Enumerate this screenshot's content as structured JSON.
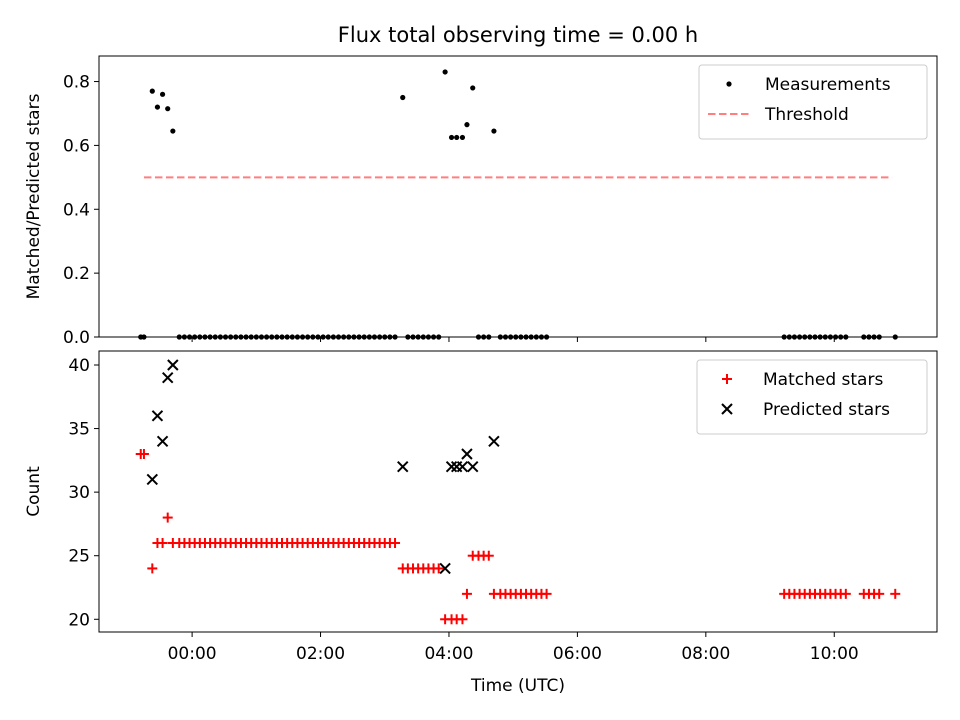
{
  "chart_data": [
    {
      "type": "scatter",
      "panel": "top",
      "title": "Flux total observing time = 0.00 h",
      "xlabel": "",
      "ylabel": "Matched/Predicted stars",
      "xlim": [
        -1.45,
        11.6
      ],
      "ylim": [
        0,
        0.88
      ],
      "yticks": [
        "0.0",
        "0.2",
        "0.4",
        "0.6",
        "0.8"
      ],
      "xticks": [
        "00:00",
        "02:00",
        "04:00",
        "06:00",
        "08:00",
        "10:00"
      ],
      "show_xtick_labels": false,
      "legend_position": "upper right",
      "grid": false,
      "series": [
        {
          "name": "Measurements",
          "kind": "scatter",
          "color": "#000000",
          "points": [
            [
              -0.8,
              0.0
            ],
            [
              -0.75,
              0.0
            ],
            [
              -0.62,
              0.77
            ],
            [
              -0.54,
              0.72
            ],
            [
              -0.46,
              0.76
            ],
            [
              -0.38,
              0.715
            ],
            [
              -0.3,
              0.645
            ],
            [
              -0.2,
              0.0
            ],
            [
              -0.12,
              0.0
            ],
            [
              -0.04,
              0.0
            ],
            [
              0.04,
              0.0
            ],
            [
              0.12,
              0.0
            ],
            [
              0.2,
              0.0
            ],
            [
              0.28,
              0.0
            ],
            [
              0.36,
              0.0
            ],
            [
              0.44,
              0.0
            ],
            [
              0.52,
              0.0
            ],
            [
              0.6,
              0.0
            ],
            [
              0.68,
              0.0
            ],
            [
              0.76,
              0.0
            ],
            [
              0.84,
              0.0
            ],
            [
              0.92,
              0.0
            ],
            [
              1.0,
              0.0
            ],
            [
              1.08,
              0.0
            ],
            [
              1.16,
              0.0
            ],
            [
              1.24,
              0.0
            ],
            [
              1.32,
              0.0
            ],
            [
              1.4,
              0.0
            ],
            [
              1.48,
              0.0
            ],
            [
              1.56,
              0.0
            ],
            [
              1.64,
              0.0
            ],
            [
              1.72,
              0.0
            ],
            [
              1.8,
              0.0
            ],
            [
              1.88,
              0.0
            ],
            [
              1.96,
              0.0
            ],
            [
              2.04,
              0.0
            ],
            [
              2.12,
              0.0
            ],
            [
              2.2,
              0.0
            ],
            [
              2.28,
              0.0
            ],
            [
              2.36,
              0.0
            ],
            [
              2.44,
              0.0
            ],
            [
              2.52,
              0.0
            ],
            [
              2.6,
              0.0
            ],
            [
              2.68,
              0.0
            ],
            [
              2.76,
              0.0
            ],
            [
              2.84,
              0.0
            ],
            [
              2.92,
              0.0
            ],
            [
              3.0,
              0.0
            ],
            [
              3.08,
              0.0
            ],
            [
              3.16,
              0.0
            ],
            [
              3.28,
              0.75
            ],
            [
              3.36,
              0.0
            ],
            [
              3.44,
              0.0
            ],
            [
              3.52,
              0.0
            ],
            [
              3.6,
              0.0
            ],
            [
              3.68,
              0.0
            ],
            [
              3.76,
              0.0
            ],
            [
              3.84,
              0.0
            ],
            [
              3.94,
              0.83
            ],
            [
              4.04,
              0.625
            ],
            [
              4.12,
              0.625
            ],
            [
              4.21,
              0.625
            ],
            [
              4.28,
              0.665
            ],
            [
              4.37,
              0.78
            ],
            [
              4.46,
              0.0
            ],
            [
              4.54,
              0.0
            ],
            [
              4.62,
              0.0
            ],
            [
              4.7,
              0.645
            ],
            [
              4.8,
              0.0
            ],
            [
              4.88,
              0.0
            ],
            [
              4.96,
              0.0
            ],
            [
              5.04,
              0.0
            ],
            [
              5.12,
              0.0
            ],
            [
              5.2,
              0.0
            ],
            [
              5.28,
              0.0
            ],
            [
              5.36,
              0.0
            ],
            [
              5.44,
              0.0
            ],
            [
              5.52,
              0.0
            ],
            [
              9.22,
              0.0
            ],
            [
              9.3,
              0.0
            ],
            [
              9.38,
              0.0
            ],
            [
              9.46,
              0.0
            ],
            [
              9.54,
              0.0
            ],
            [
              9.62,
              0.0
            ],
            [
              9.7,
              0.0
            ],
            [
              9.78,
              0.0
            ],
            [
              9.86,
              0.0
            ],
            [
              9.94,
              0.0
            ],
            [
              10.02,
              0.0
            ],
            [
              10.1,
              0.0
            ],
            [
              10.18,
              0.0
            ],
            [
              10.46,
              0.0
            ],
            [
              10.54,
              0.0
            ],
            [
              10.62,
              0.0
            ],
            [
              10.7,
              0.0
            ],
            [
              10.95,
              0.0
            ]
          ]
        },
        {
          "name": "Threshold",
          "kind": "line",
          "style": "dashed",
          "color": "#ff7f7f",
          "points": [
            [
              -0.75,
              0.5
            ],
            [
              10.9,
              0.5
            ]
          ]
        }
      ]
    },
    {
      "type": "scatter",
      "panel": "bottom",
      "title": "",
      "xlabel": "Time (UTC)",
      "ylabel": "Count",
      "xlim": [
        -1.45,
        11.6
      ],
      "ylim": [
        19,
        41.1
      ],
      "yticks": [
        "20",
        "25",
        "30",
        "35",
        "40"
      ],
      "xticks": [
        "00:00",
        "02:00",
        "04:00",
        "06:00",
        "08:00",
        "10:00"
      ],
      "show_xtick_labels": true,
      "legend_position": "upper right",
      "grid": false,
      "series": [
        {
          "name": "Matched stars",
          "marker": "plus",
          "color": "#ff0000",
          "points": [
            [
              -0.8,
              33
            ],
            [
              -0.75,
              33
            ],
            [
              -0.62,
              24
            ],
            [
              -0.54,
              26
            ],
            [
              -0.46,
              26
            ],
            [
              -0.38,
              28
            ],
            [
              -0.3,
              26
            ],
            [
              -0.2,
              26
            ],
            [
              -0.12,
              26
            ],
            [
              -0.04,
              26
            ],
            [
              0.04,
              26
            ],
            [
              0.12,
              26
            ],
            [
              0.2,
              26
            ],
            [
              0.28,
              26
            ],
            [
              0.36,
              26
            ],
            [
              0.44,
              26
            ],
            [
              0.52,
              26
            ],
            [
              0.6,
              26
            ],
            [
              0.68,
              26
            ],
            [
              0.76,
              26
            ],
            [
              0.84,
              26
            ],
            [
              0.92,
              26
            ],
            [
              1.0,
              26
            ],
            [
              1.08,
              26
            ],
            [
              1.16,
              26
            ],
            [
              1.24,
              26
            ],
            [
              1.32,
              26
            ],
            [
              1.4,
              26
            ],
            [
              1.48,
              26
            ],
            [
              1.56,
              26
            ],
            [
              1.64,
              26
            ],
            [
              1.72,
              26
            ],
            [
              1.8,
              26
            ],
            [
              1.88,
              26
            ],
            [
              1.96,
              26
            ],
            [
              2.04,
              26
            ],
            [
              2.12,
              26
            ],
            [
              2.2,
              26
            ],
            [
              2.28,
              26
            ],
            [
              2.36,
              26
            ],
            [
              2.44,
              26
            ],
            [
              2.52,
              26
            ],
            [
              2.6,
              26
            ],
            [
              2.68,
              26
            ],
            [
              2.76,
              26
            ],
            [
              2.84,
              26
            ],
            [
              2.92,
              26
            ],
            [
              3.0,
              26
            ],
            [
              3.08,
              26
            ],
            [
              3.16,
              26
            ],
            [
              3.28,
              24
            ],
            [
              3.36,
              24
            ],
            [
              3.44,
              24
            ],
            [
              3.52,
              24
            ],
            [
              3.6,
              24
            ],
            [
              3.68,
              24
            ],
            [
              3.76,
              24
            ],
            [
              3.84,
              24
            ],
            [
              3.94,
              20
            ],
            [
              4.04,
              20
            ],
            [
              4.12,
              20
            ],
            [
              4.21,
              20
            ],
            [
              4.28,
              22
            ],
            [
              4.37,
              25
            ],
            [
              4.46,
              25
            ],
            [
              4.54,
              25
            ],
            [
              4.62,
              25
            ],
            [
              4.7,
              22
            ],
            [
              4.8,
              22
            ],
            [
              4.88,
              22
            ],
            [
              4.96,
              22
            ],
            [
              5.04,
              22
            ],
            [
              5.12,
              22
            ],
            [
              5.2,
              22
            ],
            [
              5.28,
              22
            ],
            [
              5.36,
              22
            ],
            [
              5.44,
              22
            ],
            [
              5.52,
              22
            ],
            [
              9.22,
              22
            ],
            [
              9.3,
              22
            ],
            [
              9.38,
              22
            ],
            [
              9.46,
              22
            ],
            [
              9.54,
              22
            ],
            [
              9.62,
              22
            ],
            [
              9.7,
              22
            ],
            [
              9.78,
              22
            ],
            [
              9.86,
              22
            ],
            [
              9.94,
              22
            ],
            [
              10.02,
              22
            ],
            [
              10.1,
              22
            ],
            [
              10.18,
              22
            ],
            [
              10.46,
              22
            ],
            [
              10.54,
              22
            ],
            [
              10.62,
              22
            ],
            [
              10.7,
              22
            ],
            [
              10.95,
              22
            ]
          ]
        },
        {
          "name": "Predicted stars",
          "marker": "x",
          "color": "#000000",
          "points": [
            [
              -0.62,
              31
            ],
            [
              -0.54,
              36
            ],
            [
              -0.46,
              34
            ],
            [
              -0.38,
              39
            ],
            [
              -0.3,
              40
            ],
            [
              3.28,
              32
            ],
            [
              3.94,
              24
            ],
            [
              4.04,
              32
            ],
            [
              4.12,
              32
            ],
            [
              4.21,
              32
            ],
            [
              4.28,
              33
            ],
            [
              4.37,
              32
            ],
            [
              4.7,
              34
            ]
          ]
        }
      ]
    }
  ]
}
